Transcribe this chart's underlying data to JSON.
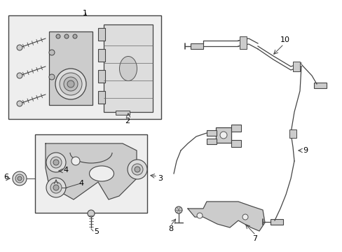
{
  "background_color": "#ffffff",
  "line_color": "#444444",
  "box_fill": "#eeeeee",
  "figsize": [
    4.89,
    3.6
  ],
  "dpi": 100
}
